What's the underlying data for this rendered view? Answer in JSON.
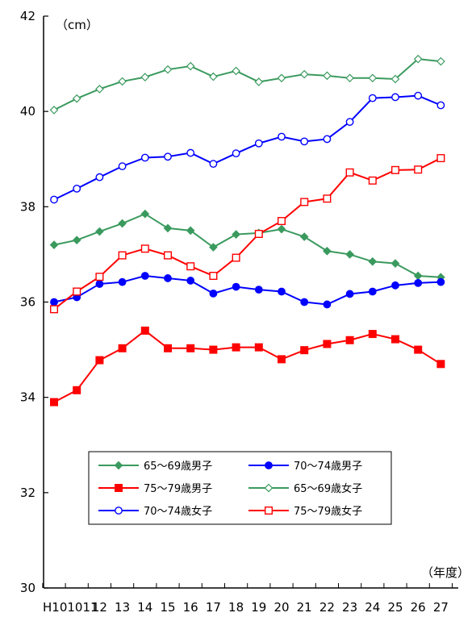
{
  "chart_data": {
    "type": "line",
    "y_unit": "（cm）",
    "x_unit": "（年度）",
    "x_first_label": "H10",
    "categories": [
      "10",
      "11",
      "12",
      "13",
      "14",
      "15",
      "16",
      "17",
      "18",
      "19",
      "20",
      "21",
      "22",
      "23",
      "24",
      "25",
      "26",
      "27"
    ],
    "ylim": [
      30,
      42
    ],
    "yticks": [
      "30",
      "32",
      "34",
      "36",
      "38",
      "40",
      "42"
    ],
    "grid": false,
    "legend_position": "bottom-center, inside plot",
    "series": [
      {
        "name": "65～69歳男子",
        "color": "#3a9a5e",
        "marker": "diamond",
        "filled": true,
        "values": [
          37.2,
          37.3,
          37.48,
          37.65,
          37.85,
          37.55,
          37.5,
          37.15,
          37.42,
          37.45,
          37.53,
          37.37,
          37.07,
          37.0,
          36.85,
          36.81,
          36.55,
          36.52
        ]
      },
      {
        "name": "70～74歳男子",
        "color": "#0000ff",
        "marker": "circle",
        "filled": true,
        "values": [
          36.0,
          36.1,
          36.38,
          36.42,
          36.55,
          36.5,
          36.45,
          36.18,
          36.32,
          36.26,
          36.22,
          36.0,
          35.95,
          36.17,
          36.22,
          36.35,
          36.4,
          36.42
        ]
      },
      {
        "name": "75～79歳男子",
        "color": "#ff0000",
        "marker": "square",
        "filled": true,
        "values": [
          33.9,
          34.15,
          34.78,
          35.03,
          35.4,
          35.03,
          35.03,
          35.0,
          35.05,
          35.05,
          34.8,
          34.99,
          35.12,
          35.2,
          35.33,
          35.22,
          35.0,
          34.7
        ]
      },
      {
        "name": "65～69歳女子",
        "color": "#3a9a5e",
        "marker": "diamond",
        "filled": false,
        "values": [
          40.03,
          40.27,
          40.47,
          40.63,
          40.72,
          40.88,
          40.95,
          40.73,
          40.85,
          40.62,
          40.7,
          40.78,
          40.75,
          40.7,
          40.7,
          40.68,
          41.1,
          41.05
        ]
      },
      {
        "name": "70～74歳女子",
        "color": "#0000ff",
        "marker": "circle",
        "filled": false,
        "values": [
          38.15,
          38.38,
          38.62,
          38.85,
          39.03,
          39.05,
          39.13,
          38.9,
          39.12,
          39.33,
          39.47,
          39.37,
          39.42,
          39.78,
          40.28,
          40.3,
          40.33,
          40.13
        ]
      },
      {
        "name": "75～79歳女子",
        "color": "#ff0000",
        "marker": "square",
        "filled": false,
        "values": [
          35.85,
          36.22,
          36.53,
          36.98,
          37.12,
          36.98,
          36.75,
          36.55,
          36.93,
          37.43,
          37.7,
          38.1,
          38.17,
          38.72,
          38.55,
          38.77,
          38.78,
          39.02
        ]
      }
    ]
  }
}
